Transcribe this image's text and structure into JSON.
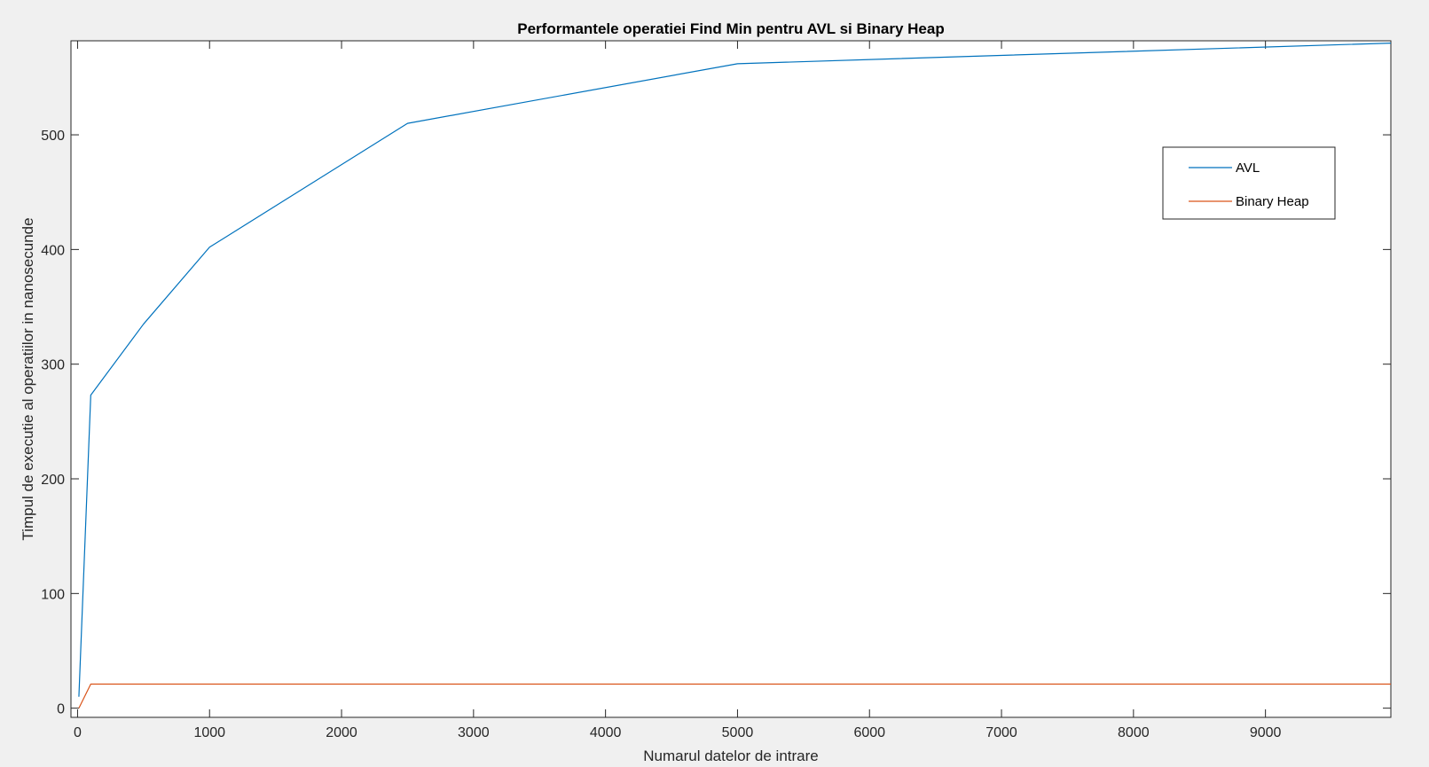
{
  "chart_data": {
    "type": "line",
    "title": "Performantele operatiei Find Min pentru AVL si Binary Heap",
    "xlabel": "Numarul datelor de intrare",
    "ylabel": "Timpul de executie al operatiilor in nanosecunde",
    "xlim": [
      -50,
      9950
    ],
    "ylim": [
      -8,
      582
    ],
    "xticks": [
      0,
      1000,
      2000,
      3000,
      4000,
      5000,
      6000,
      7000,
      8000,
      9000
    ],
    "yticks": [
      0,
      100,
      200,
      300,
      400,
      500
    ],
    "grid": false,
    "legend_position": "top-right",
    "series": [
      {
        "name": "AVL",
        "color": "#0072bd",
        "x": [
          10,
          100,
          500,
          1000,
          2500,
          5000,
          10000
        ],
        "y": [
          10,
          273,
          335,
          402,
          510,
          562,
          580
        ]
      },
      {
        "name": "Binary Heap",
        "color": "#d95319",
        "x": [
          10,
          100,
          500,
          1000,
          2500,
          5000,
          10000
        ],
        "y": [
          0,
          21,
          21,
          21,
          21,
          21,
          21
        ]
      }
    ]
  }
}
